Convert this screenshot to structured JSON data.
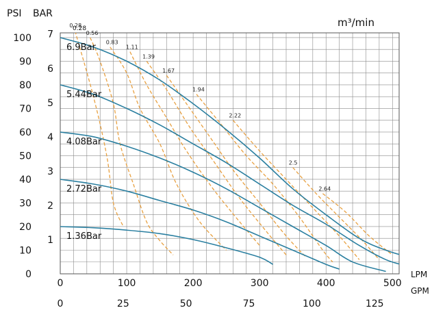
{
  "chart_data": {
    "type": "line",
    "title": "",
    "units": {
      "psi": "PSI",
      "bar": "BAR",
      "flow_rate": "m³/min",
      "lpm": "LPM",
      "gpm": "GPM"
    },
    "axes": {
      "psi_ticks": [
        "0",
        "10",
        "20",
        "30",
        "40",
        "50",
        "60",
        "70",
        "80",
        "90",
        "100"
      ],
      "bar_ticks": [
        "1",
        "2",
        "3",
        "4",
        "5",
        "6",
        "7"
      ],
      "lpm_ticks": [
        "0",
        "100",
        "200",
        "300",
        "400",
        "500"
      ],
      "gpm_ticks": [
        "0",
        "25",
        "50",
        "75",
        "100",
        "125"
      ],
      "x_range_lpm": [
        0,
        510
      ],
      "y_range_psi": [
        0,
        102
      ],
      "grid": true
    },
    "series": [
      {
        "name": "6.9Bar",
        "color": "#2a7fa0",
        "points": [
          [
            0,
            100
          ],
          [
            50,
            96
          ],
          [
            100,
            90
          ],
          [
            150,
            82
          ],
          [
            200,
            72
          ],
          [
            250,
            61
          ],
          [
            300,
            49
          ],
          [
            350,
            36
          ],
          [
            400,
            25
          ],
          [
            450,
            15
          ],
          [
            490,
            10
          ],
          [
            525,
            7
          ]
        ]
      },
      {
        "name": "5.44Bar",
        "color": "#2a7fa0",
        "points": [
          [
            0,
            80
          ],
          [
            50,
            76
          ],
          [
            100,
            70
          ],
          [
            150,
            63
          ],
          [
            200,
            55
          ],
          [
            250,
            47
          ],
          [
            300,
            38
          ],
          [
            350,
            29
          ],
          [
            400,
            21
          ],
          [
            450,
            12
          ],
          [
            490,
            6
          ],
          [
            525,
            3
          ]
        ]
      },
      {
        "name": "4.08Bar",
        "color": "#2a7fa0",
        "points": [
          [
            0,
            60
          ],
          [
            50,
            58
          ],
          [
            100,
            54
          ],
          [
            150,
            49
          ],
          [
            200,
            43
          ],
          [
            250,
            36
          ],
          [
            300,
            28
          ],
          [
            350,
            20
          ],
          [
            400,
            12
          ],
          [
            440,
            5
          ],
          [
            490,
            1
          ]
        ]
      },
      {
        "name": "2.72Bar",
        "color": "#2a7fa0",
        "points": [
          [
            0,
            40
          ],
          [
            50,
            38
          ],
          [
            100,
            35
          ],
          [
            150,
            31
          ],
          [
            200,
            27
          ],
          [
            250,
            22
          ],
          [
            300,
            16
          ],
          [
            350,
            10
          ],
          [
            400,
            4
          ],
          [
            420,
            2
          ]
        ]
      },
      {
        "name": "1.36Bar",
        "color": "#2a7fa0",
        "points": [
          [
            0,
            20
          ],
          [
            50,
            19.5
          ],
          [
            100,
            18.5
          ],
          [
            150,
            17
          ],
          [
            200,
            14.5
          ],
          [
            250,
            11
          ],
          [
            300,
            7
          ],
          [
            320,
            4
          ]
        ]
      }
    ],
    "flow_lines": [
      {
        "label": "0.28",
        "color": "#e8a040",
        "points": [
          [
            20,
            105
          ],
          [
            50,
            75
          ],
          [
            70,
            50
          ],
          [
            80,
            30
          ],
          [
            95,
            20
          ]
        ]
      },
      {
        "label": "0.56",
        "color": "#e8a040",
        "points": [
          [
            45,
            100
          ],
          [
            60,
            90
          ],
          [
            80,
            72
          ],
          [
            90,
            55
          ],
          [
            110,
            38
          ],
          [
            130,
            22
          ],
          [
            150,
            14
          ],
          [
            170,
            8
          ]
        ]
      },
      {
        "label": "0.83",
        "color": "#e8a040",
        "points": [
          [
            75,
            96
          ],
          [
            100,
            85
          ],
          [
            120,
            70
          ],
          [
            150,
            55
          ],
          [
            175,
            38
          ],
          [
            210,
            22
          ],
          [
            250,
            10
          ]
        ]
      },
      {
        "label": "1.11",
        "color": "#e8a040",
        "points": [
          [
            105,
            94
          ],
          [
            130,
            80
          ],
          [
            160,
            66
          ],
          [
            190,
            52
          ],
          [
            230,
            36
          ],
          [
            270,
            22
          ],
          [
            300,
            12
          ]
        ]
      },
      {
        "label": "1.39",
        "color": "#e8a040",
        "points": [
          [
            130,
            90
          ],
          [
            160,
            78
          ],
          [
            195,
            62
          ],
          [
            230,
            48
          ],
          [
            270,
            32
          ],
          [
            310,
            18
          ],
          [
            340,
            8
          ]
        ]
      },
      {
        "label": "1.67",
        "color": "#e8a040",
        "points": [
          [
            160,
            84
          ],
          [
            190,
            72
          ],
          [
            225,
            58
          ],
          [
            260,
            44
          ],
          [
            300,
            30
          ],
          [
            340,
            16
          ],
          [
            370,
            7
          ]
        ]
      },
      {
        "label": "1.94",
        "color": "#e8a040",
        "points": [
          [
            205,
            76
          ],
          [
            240,
            64
          ],
          [
            280,
            50
          ],
          [
            320,
            38
          ],
          [
            360,
            24
          ],
          [
            395,
            10
          ],
          [
            410,
            5
          ]
        ]
      },
      {
        "label": "2.22",
        "color": "#e8a040",
        "points": [
          [
            260,
            65
          ],
          [
            300,
            52
          ],
          [
            340,
            40
          ],
          [
            380,
            28
          ],
          [
            420,
            16
          ],
          [
            450,
            6
          ]
        ]
      },
      {
        "label": "2.5",
        "color": "#e8a040",
        "points": [
          [
            350,
            45
          ],
          [
            385,
            34
          ],
          [
            420,
            24
          ],
          [
            455,
            14
          ],
          [
            480,
            6
          ]
        ]
      },
      {
        "label": "2.64",
        "color": "#e8a040",
        "points": [
          [
            395,
            34
          ],
          [
            430,
            26
          ],
          [
            465,
            16
          ],
          [
            500,
            8
          ]
        ]
      }
    ]
  }
}
